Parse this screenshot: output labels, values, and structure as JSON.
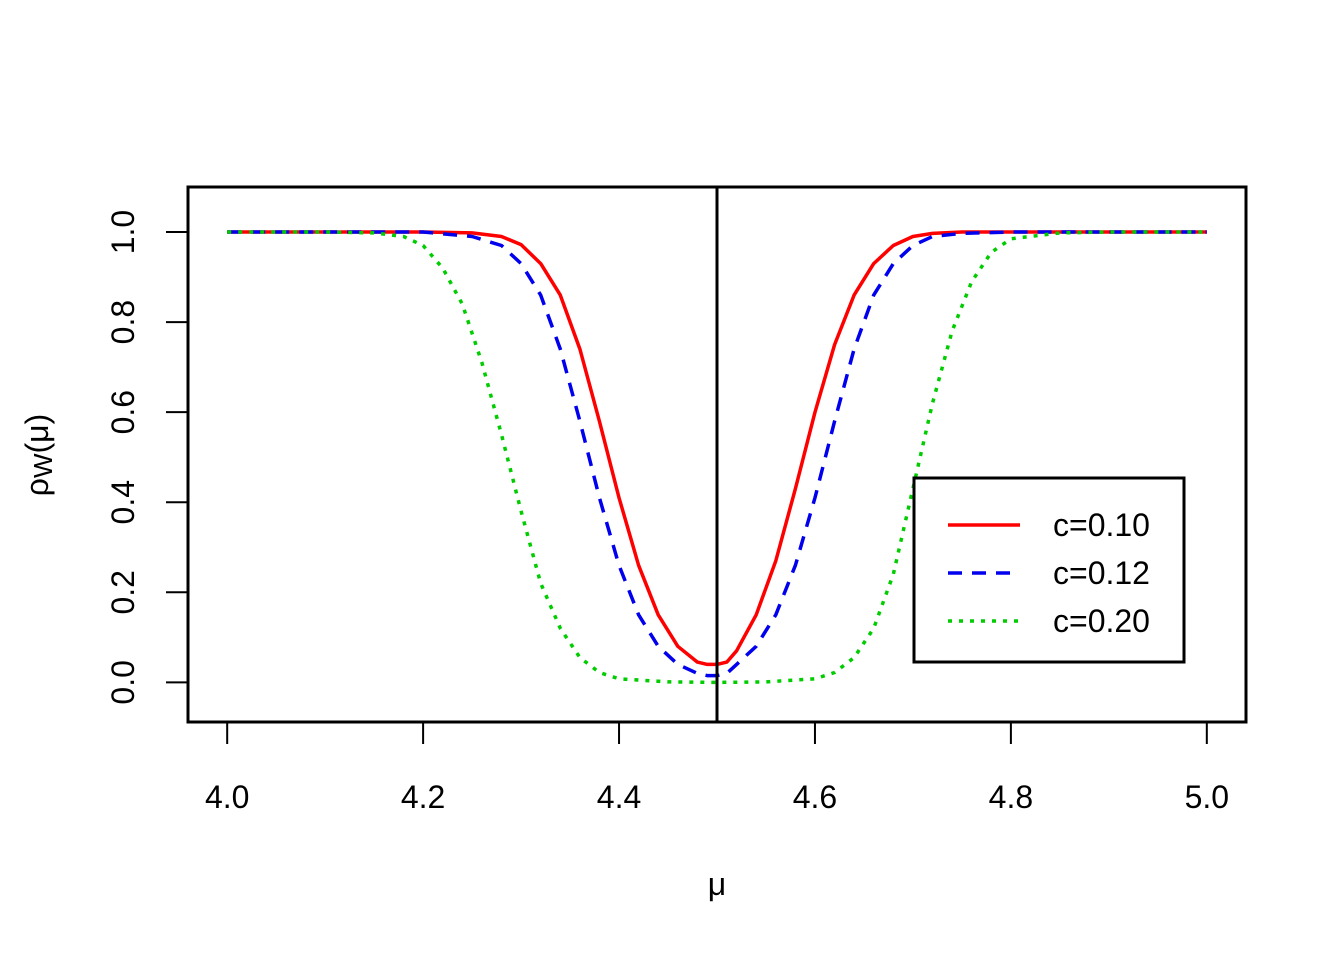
{
  "chart_data": {
    "type": "line",
    "title": "",
    "xlabel": "μ",
    "ylabel_main": "ρ",
    "ylabel_sub": "W",
    "ylabel_arg": "(μ)",
    "xlim": [
      3.96,
      5.04
    ],
    "ylim": [
      -0.088,
      1.1
    ],
    "x_ticks": [
      4.0,
      4.2,
      4.4,
      4.6,
      4.8,
      5.0
    ],
    "x_tick_labels": [
      "4.0",
      "4.2",
      "4.4",
      "4.6",
      "4.8",
      "5.0"
    ],
    "y_ticks": [
      0.0,
      0.2,
      0.4,
      0.6,
      0.8,
      1.0
    ],
    "y_tick_labels": [
      "0.0",
      "0.2",
      "0.4",
      "0.6",
      "0.8",
      "1.0"
    ],
    "vline_x": 4.5,
    "legend_position": "right",
    "series": [
      {
        "name": "c=0.10",
        "color": "#ff0000",
        "dash": "solid",
        "x": [
          4.0,
          4.1,
          4.2,
          4.25,
          4.28,
          4.3,
          4.32,
          4.34,
          4.36,
          4.38,
          4.4,
          4.42,
          4.44,
          4.46,
          4.48,
          4.49,
          4.5,
          4.51,
          4.52,
          4.54,
          4.56,
          4.58,
          4.6,
          4.62,
          4.64,
          4.66,
          4.68,
          4.7,
          4.72,
          4.75,
          4.8,
          4.9,
          5.0
        ],
        "y": [
          1.0,
          1.0,
          1.0,
          0.998,
          0.99,
          0.972,
          0.93,
          0.86,
          0.74,
          0.58,
          0.41,
          0.26,
          0.15,
          0.08,
          0.045,
          0.04,
          0.04,
          0.045,
          0.07,
          0.15,
          0.27,
          0.43,
          0.6,
          0.75,
          0.86,
          0.93,
          0.97,
          0.99,
          0.997,
          1.0,
          1.0,
          1.0,
          1.0
        ]
      },
      {
        "name": "c=0.12",
        "color": "#0000ee",
        "dash": "dashed",
        "x": [
          4.0,
          4.1,
          4.2,
          4.25,
          4.28,
          4.3,
          4.32,
          4.34,
          4.36,
          4.38,
          4.4,
          4.42,
          4.44,
          4.46,
          4.48,
          4.49,
          4.5,
          4.51,
          4.52,
          4.54,
          4.56,
          4.58,
          4.6,
          4.62,
          4.64,
          4.66,
          4.68,
          4.7,
          4.72,
          4.75,
          4.8,
          4.9,
          5.0
        ],
        "y": [
          1.0,
          1.0,
          1.0,
          0.99,
          0.97,
          0.93,
          0.86,
          0.74,
          0.58,
          0.41,
          0.26,
          0.15,
          0.08,
          0.04,
          0.02,
          0.015,
          0.015,
          0.02,
          0.04,
          0.08,
          0.15,
          0.26,
          0.41,
          0.58,
          0.74,
          0.86,
          0.93,
          0.97,
          0.99,
          0.997,
          1.0,
          1.0,
          1.0
        ]
      },
      {
        "name": "c=0.20",
        "color": "#00cc00",
        "dash": "dotted",
        "x": [
          4.0,
          4.1,
          4.15,
          4.18,
          4.2,
          4.22,
          4.24,
          4.26,
          4.28,
          4.3,
          4.32,
          4.34,
          4.36,
          4.38,
          4.4,
          4.45,
          4.5,
          4.55,
          4.6,
          4.62,
          4.64,
          4.66,
          4.68,
          4.7,
          4.72,
          4.74,
          4.76,
          4.78,
          4.8,
          4.85,
          4.9,
          5.0
        ],
        "y": [
          1.0,
          1.0,
          0.998,
          0.99,
          0.97,
          0.92,
          0.84,
          0.71,
          0.55,
          0.38,
          0.22,
          0.12,
          0.055,
          0.022,
          0.008,
          0.001,
          0.0,
          0.001,
          0.008,
          0.022,
          0.055,
          0.12,
          0.24,
          0.43,
          0.62,
          0.78,
          0.89,
          0.955,
          0.985,
          0.998,
          1.0,
          1.0
        ]
      }
    ]
  }
}
